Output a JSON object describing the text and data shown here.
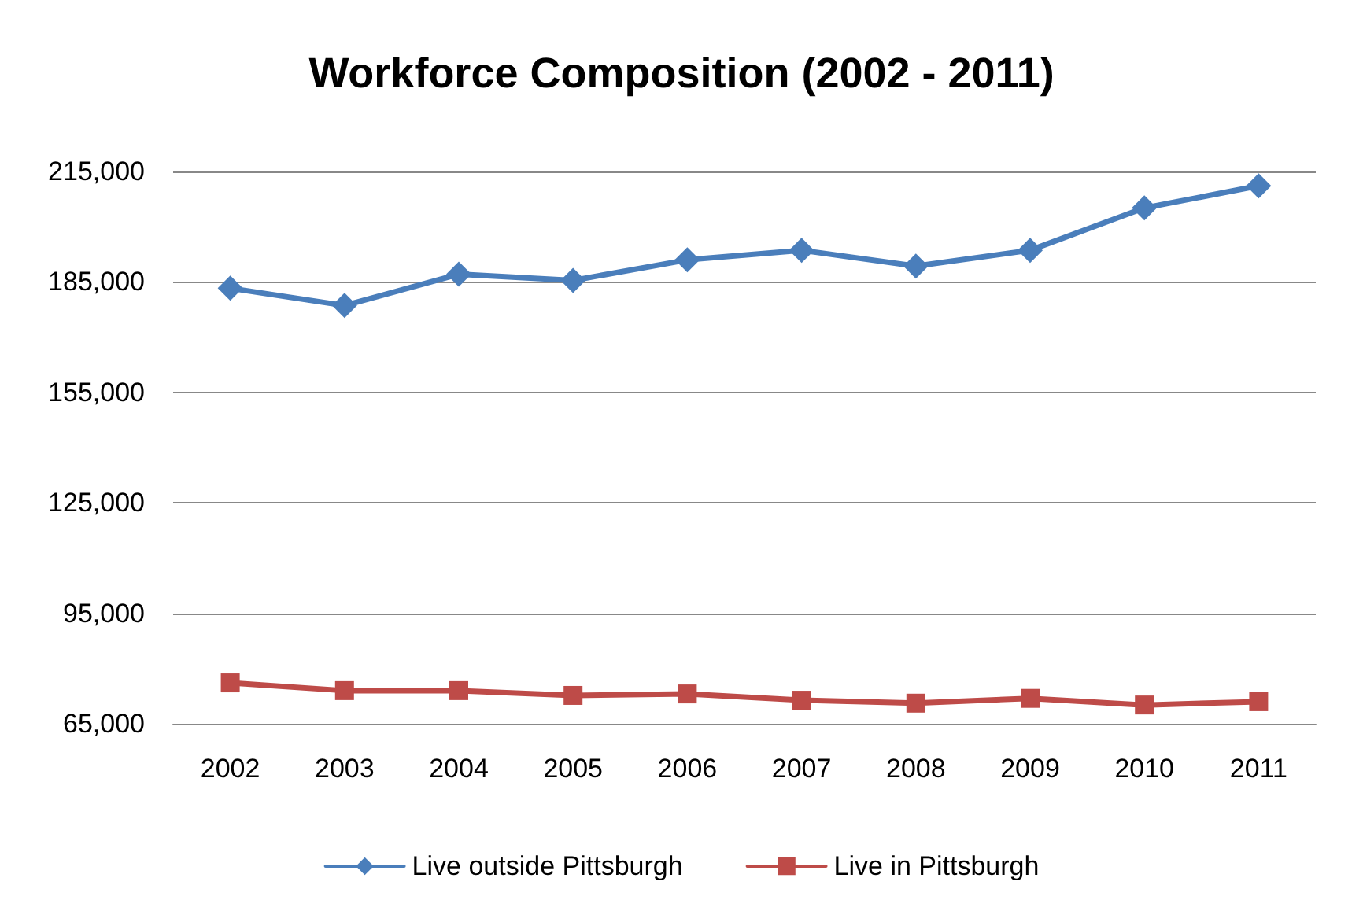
{
  "chart_data": {
    "type": "line",
    "title": "Workforce Composition (2002 - 2011)",
    "categories": [
      "2002",
      "2003",
      "2004",
      "2005",
      "2006",
      "2007",
      "2008",
      "2009",
      "2010",
      "2011"
    ],
    "series": [
      {
        "name": "Live outside Pittsburgh",
        "color": "#4a7ebb",
        "marker": "diamond",
        "values": [
          183300,
          178600,
          187100,
          185400,
          191000,
          193600,
          189300,
          193600,
          205100,
          211100
        ]
      },
      {
        "name": "Live in Pittsburgh",
        "color": "#be4b48",
        "marker": "square",
        "values": [
          76100,
          74000,
          74000,
          72700,
          73100,
          71400,
          70600,
          71900,
          70100,
          71000
        ]
      }
    ],
    "ylim": [
      65000,
      215000
    ],
    "yticks": [
      {
        "value": 65000,
        "label": "65,000"
      },
      {
        "value": 95000,
        "label": "95,000"
      },
      {
        "value": 125000,
        "label": "125,000"
      },
      {
        "value": 155000,
        "label": "155,000"
      },
      {
        "value": 185000,
        "label": "185,000"
      },
      {
        "value": 215000,
        "label": "215,000"
      }
    ],
    "grid": "y",
    "legend": "bottom",
    "line_style": "solid"
  }
}
